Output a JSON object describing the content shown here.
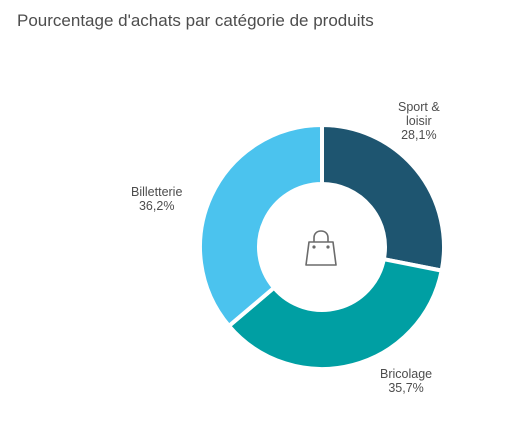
{
  "chart_data": {
    "type": "pie",
    "title": "Pourcentage d'achats par catégorie de produits",
    "slices": [
      {
        "name": "Sport & loisir",
        "name_lines": [
          "Sport &",
          "loisir"
        ],
        "value": 28.1,
        "label": "28,1%",
        "color": "#1e5570"
      },
      {
        "name": "Bricolage",
        "name_lines": [
          "Bricolage"
        ],
        "value": 35.7,
        "label": "35,7%",
        "color": "#009fa3"
      },
      {
        "name": "Billetterie",
        "name_lines": [
          "Billetterie"
        ],
        "value": 36.2,
        "label": "36,2%",
        "color": "#4bc3ee"
      }
    ],
    "donut": true,
    "center_icon": "shopping-bag-icon",
    "legend": "none",
    "grid": false
  }
}
